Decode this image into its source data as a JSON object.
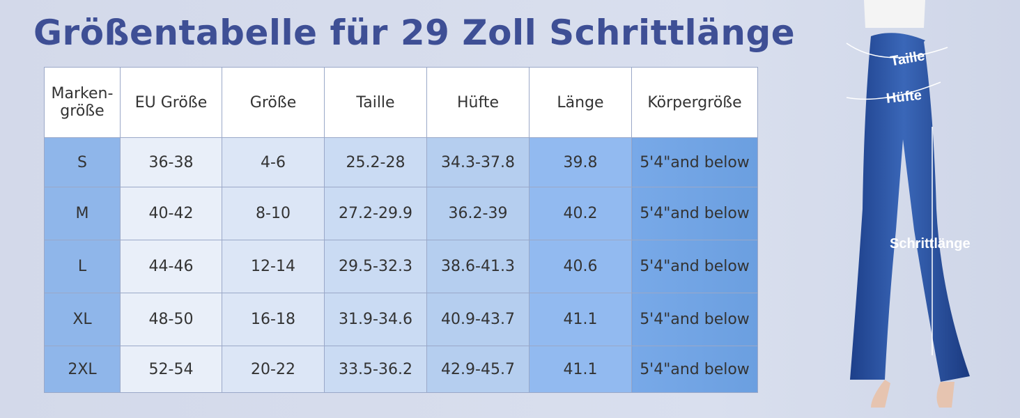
{
  "title": "Größentabelle für 29 Zoll Schrittlänge",
  "table": {
    "header": [
      "Marken-größe",
      "EU Größe",
      "Größe",
      "Taille",
      "Hüfte",
      "Länge",
      "Körpergröße"
    ],
    "rows": [
      [
        "S",
        "36-38",
        "4-6",
        "25.2-28",
        "34.3-37.8",
        "39.8",
        "5'4\"and below"
      ],
      [
        "M",
        "40-42",
        "8-10",
        "27.2-29.9",
        "36.2-39",
        "40.2",
        "5'4\"and below"
      ],
      [
        "L",
        "44-46",
        "12-14",
        "29.5-32.3",
        "38.6-41.3",
        "40.6",
        "5'4\"and below"
      ],
      [
        "XL",
        "48-50",
        "16-18",
        "31.9-34.6",
        "40.9-43.7",
        "41.1",
        "5'4\"and below"
      ],
      [
        "2XL",
        "52-54",
        "20-22",
        "33.5-36.2",
        "42.9-45.7",
        "41.1",
        "5'4\"and below"
      ]
    ]
  },
  "figure": {
    "labels": [
      "Taille",
      "Hüfte",
      "Schrittlänge"
    ]
  }
}
